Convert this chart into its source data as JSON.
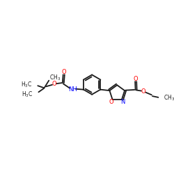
{
  "bg_color": "#ffffff",
  "bond_color": "#1a1a1a",
  "O_color": "#ff0000",
  "N_color": "#0000ff",
  "lw": 1.3,
  "fs": 6.0,
  "figsize": [
    2.5,
    2.5
  ],
  "dpi": 100,
  "xlim": [
    0,
    10
  ],
  "ylim": [
    2,
    8
  ]
}
